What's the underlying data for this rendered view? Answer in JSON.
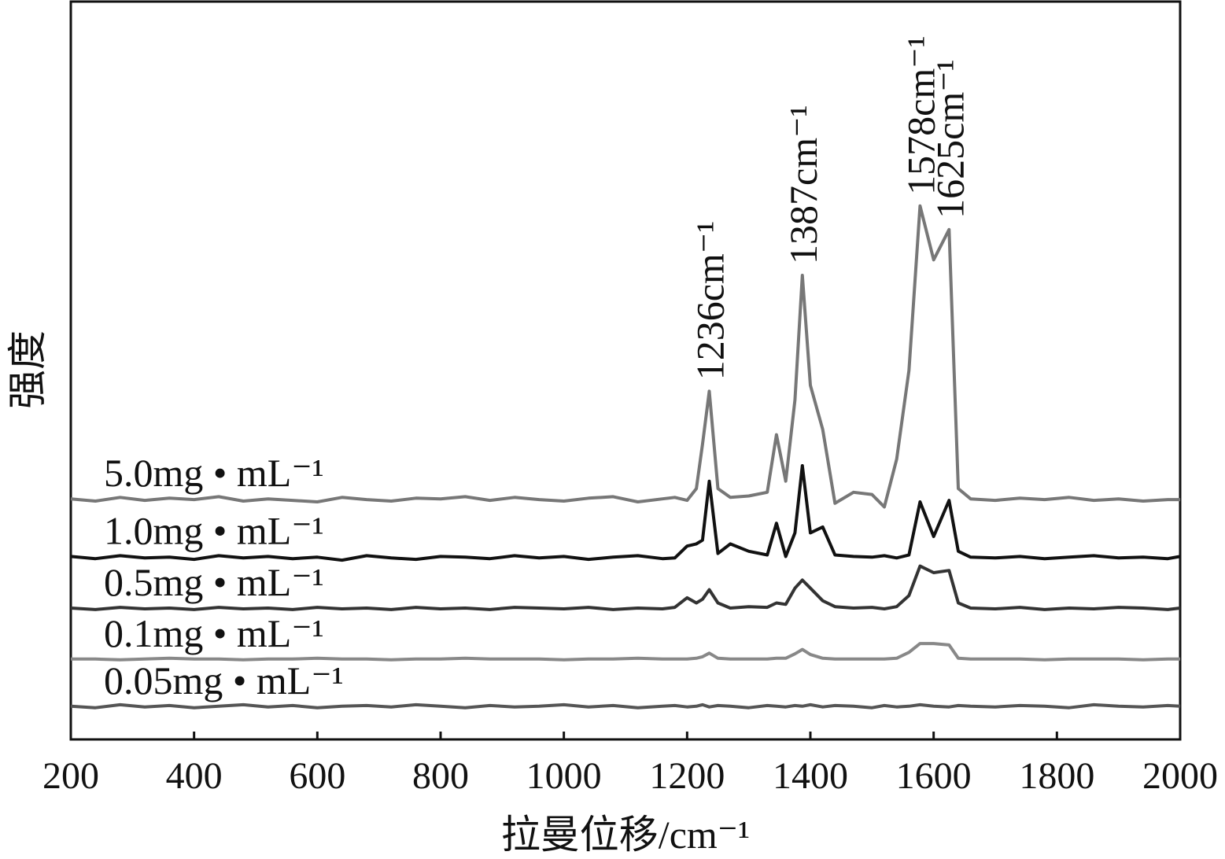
{
  "chart_data": {
    "type": "line",
    "xlabel": "拉曼位移/cm⁻¹",
    "ylabel": "强度",
    "xlim": [
      200,
      2000
    ],
    "xticks": [
      200,
      400,
      600,
      800,
      1000,
      1200,
      1400,
      1600,
      1800,
      2000
    ],
    "ylim": [
      0,
      100
    ],
    "x": [
      200,
      240,
      280,
      320,
      360,
      400,
      440,
      480,
      520,
      560,
      600,
      640,
      680,
      720,
      760,
      800,
      840,
      880,
      920,
      960,
      1000,
      1040,
      1080,
      1120,
      1160,
      1180,
      1200,
      1215,
      1225,
      1236,
      1250,
      1270,
      1300,
      1330,
      1345,
      1360,
      1375,
      1387,
      1400,
      1420,
      1440,
      1470,
      1500,
      1520,
      1540,
      1560,
      1578,
      1600,
      1625,
      1640,
      1660,
      1700,
      1740,
      1780,
      1820,
      1860,
      1900,
      1940,
      1980,
      2000
    ],
    "series": [
      {
        "name": "5.0mg • mL⁻¹",
        "color": "#777777",
        "values": [
          32.6,
          32.3,
          32.8,
          32.4,
          32.7,
          32.5,
          32.9,
          32.3,
          32.6,
          32.4,
          32.2,
          32.8,
          32.5,
          32.3,
          32.7,
          32.6,
          32.9,
          32.4,
          32.8,
          32.5,
          32.3,
          32.7,
          32.9,
          32.2,
          32.6,
          32.8,
          32.4,
          34,
          40,
          47.2,
          34,
          32.8,
          33,
          33.5,
          41.3,
          35,
          46,
          62.9,
          48,
          42,
          32,
          33.5,
          33.2,
          31.5,
          38,
          50,
          72.3,
          65,
          69.1,
          34,
          32.6,
          32.4,
          32.7,
          32.5,
          32.8,
          32.4,
          32.6,
          32.3,
          32.5,
          32.5
        ]
      },
      {
        "name": "1.0mg • mL⁻¹",
        "color": "#111111",
        "values": [
          24.8,
          24.5,
          24.9,
          24.6,
          24.7,
          24.4,
          24.9,
          24.6,
          24.8,
          24.5,
          24.7,
          24.3,
          24.9,
          24.6,
          24.4,
          24.8,
          24.7,
          24.5,
          24.9,
          24.6,
          24.8,
          24.4,
          24.7,
          24.9,
          24.5,
          24.6,
          26.2,
          26.5,
          27,
          35,
          25.2,
          26.5,
          25.5,
          25,
          29.3,
          24.8,
          28,
          37.1,
          28,
          28.8,
          25,
          24.8,
          24.7,
          24.9,
          24.6,
          25,
          32.2,
          27.5,
          32.4,
          25.5,
          24.7,
          24.6,
          24.8,
          24.5,
          24.7,
          24.9,
          24.6,
          24.7,
          24.5,
          24.8
        ]
      },
      {
        "name": "0.5mg • mL⁻¹",
        "color": "#333333",
        "values": [
          17.8,
          17.6,
          17.9,
          17.7,
          17.8,
          17.6,
          17.9,
          17.7,
          17.8,
          17.6,
          17.9,
          17.7,
          17.8,
          17.6,
          17.9,
          17.7,
          17.8,
          17.6,
          17.9,
          17.8,
          17.7,
          17.9,
          17.6,
          17.8,
          17.7,
          17.9,
          19.2,
          18.5,
          19,
          20.3,
          18.5,
          17.8,
          18,
          17.9,
          18.5,
          18.3,
          20.5,
          21.6,
          20.5,
          18.8,
          18,
          17.8,
          17.9,
          17.7,
          18,
          19.5,
          23.5,
          22.6,
          22.9,
          18.5,
          17.8,
          17.7,
          17.9,
          17.6,
          17.8,
          17.7,
          17.9,
          17.8,
          17.6,
          17.8
        ]
      },
      {
        "name": "0.1mg • mL⁻¹",
        "color": "#888888",
        "values": [
          10.9,
          10.9,
          10.8,
          10.9,
          11,
          10.9,
          10.9,
          10.8,
          10.9,
          10.9,
          11,
          10.9,
          10.9,
          10.8,
          10.9,
          10.9,
          11,
          10.9,
          10.9,
          10.9,
          10.8,
          10.9,
          10.9,
          11,
          10.9,
          10.9,
          10.9,
          11,
          11.2,
          11.7,
          11,
          10.9,
          10.9,
          10.9,
          11,
          11,
          11.6,
          12.2,
          11.5,
          11,
          10.9,
          10.9,
          10.9,
          10.9,
          11,
          11.8,
          13,
          13,
          12.8,
          11,
          10.9,
          10.9,
          10.9,
          10.8,
          10.9,
          10.9,
          10.9,
          10.8,
          10.9,
          10.9
        ]
      },
      {
        "name": "0.05mg • mL⁻¹",
        "color": "#555555",
        "values": [
          4.5,
          4.3,
          4.7,
          4.4,
          4.6,
          4.3,
          4.5,
          4.7,
          4.4,
          4.6,
          4.3,
          4.5,
          4.6,
          4.4,
          4.7,
          4.5,
          4.3,
          4.6,
          4.4,
          4.5,
          4.7,
          4.4,
          4.6,
          4.3,
          4.5,
          4.6,
          4.4,
          4.5,
          4.7,
          4.4,
          4.6,
          4.5,
          4.3,
          4.6,
          4.5,
          4.4,
          4.6,
          4.5,
          4.7,
          4.4,
          4.6,
          4.5,
          4.3,
          4.6,
          4.4,
          4.5,
          4.7,
          4.5,
          4.4,
          4.6,
          4.5,
          4.4,
          4.6,
          4.5,
          4.3,
          4.7,
          4.5,
          4.4,
          4.6,
          4.5
        ]
      }
    ],
    "annotations": [
      {
        "text": "1236cm⁻¹",
        "x": 1236
      },
      {
        "text": "1387cm⁻¹",
        "x": 1387
      },
      {
        "text": "1578cm⁻¹",
        "x": 1578
      },
      {
        "text": "1625cm⁻¹",
        "x": 1625
      }
    ]
  }
}
